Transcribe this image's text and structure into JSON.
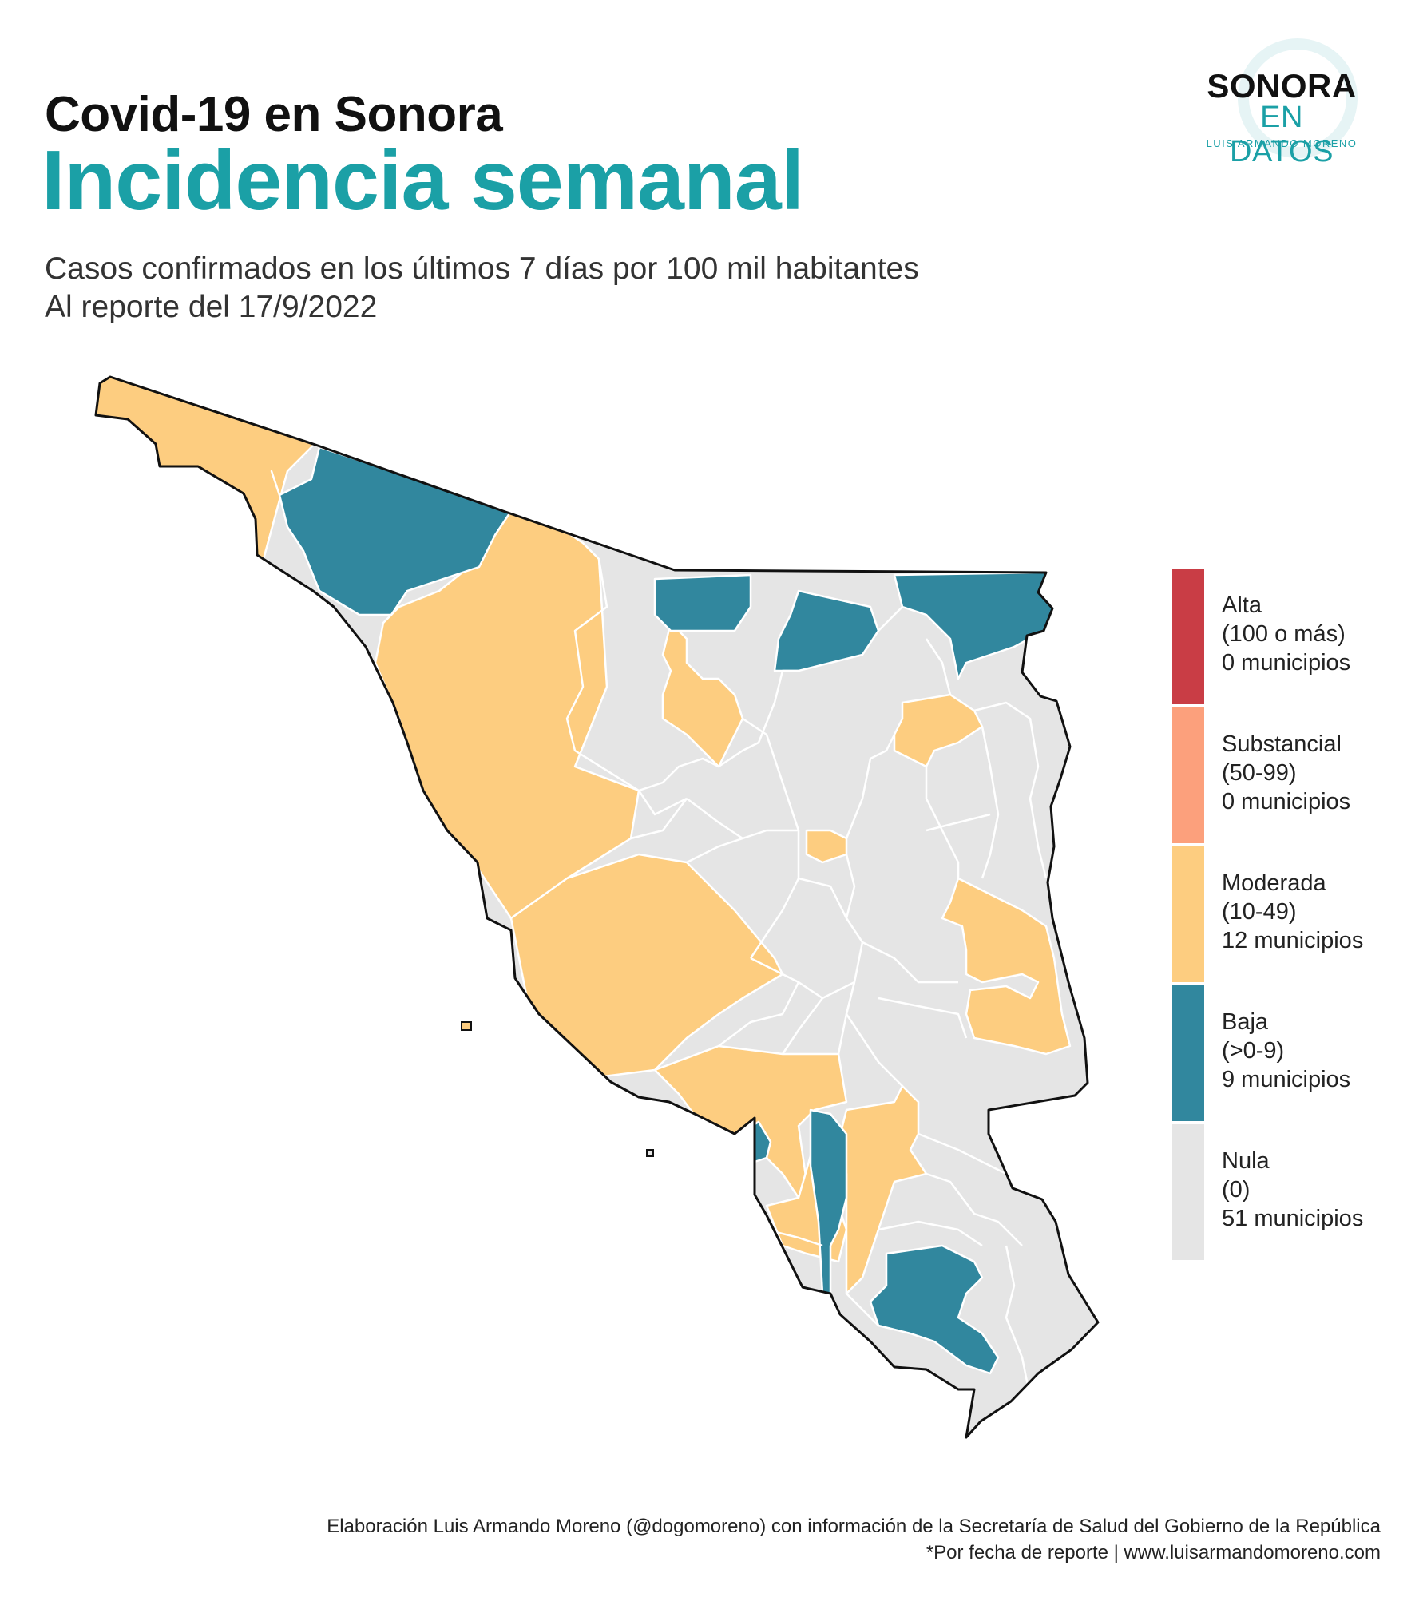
{
  "header": {
    "title_sup": "Covid-19  en Sonora",
    "title_main": "Incidencia semanal",
    "subtitle_line1": "Casos confirmados en los últimos 7 días por 100 mil habitantes",
    "subtitle_line2": "Al reporte del 17/9/2022"
  },
  "logo": {
    "line1": "SONORA",
    "line2": "EN DATOS",
    "line3": "LUIS ARMANDO MORENO"
  },
  "legend": {
    "items": [
      {
        "label": "Alta",
        "range": "(100 o más)",
        "count": "0 municipios",
        "color": "#c93d45"
      },
      {
        "label": "Substancial",
        "range": "(50-99)",
        "count": "0 municipios",
        "color": "#fca07c"
      },
      {
        "label": "Moderada",
        "range": "(10-49)",
        "count": "12 municipios",
        "color": "#fdcd80"
      },
      {
        "label": "Baja",
        "range": "(>0-9)",
        "count": "9 municipios",
        "color": "#31879e"
      },
      {
        "label": "Nula",
        "range": "(0)",
        "count": "51 municipios",
        "color": "#e5e5e5"
      }
    ]
  },
  "map": {
    "colors": {
      "moderada": "#fdcd80",
      "baja": "#31879e",
      "nula": "#e5e5e5",
      "border": "#ffffff",
      "outline": "#111111"
    }
  },
  "footer": {
    "line1": "Elaboración Luis Armando Moreno (@dogomoreno) con información de la Secretaría de Salud del Gobierno de la República",
    "line2": "*Por fecha de reporte | www.luisarmandomoreno.com"
  }
}
